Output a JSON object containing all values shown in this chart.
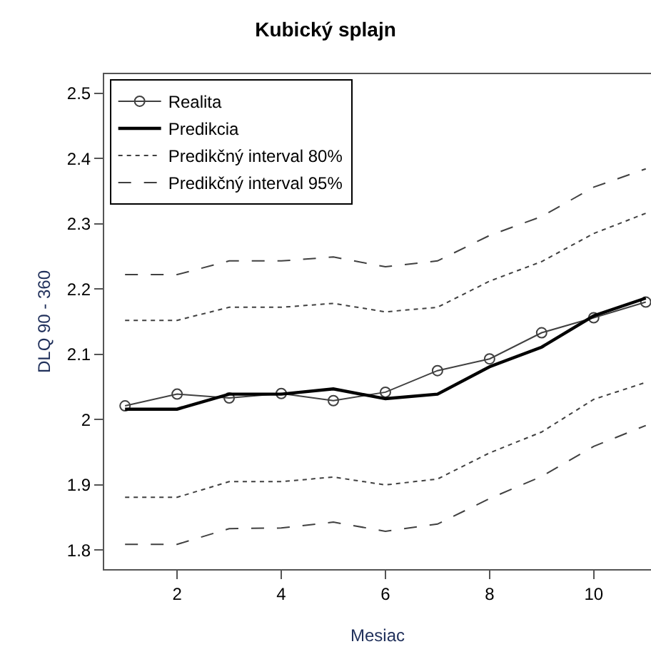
{
  "chart_data": {
    "type": "line",
    "title": "Kubický splajn",
    "xlabel": "Mesiac",
    "ylabel": "DLQ 90 - 360",
    "x": [
      1,
      2,
      3,
      4,
      5,
      6,
      7,
      8,
      9,
      10,
      11
    ],
    "series": [
      {
        "name": "Realita",
        "color": "#404040",
        "marker": "circle",
        "line_style": "solid",
        "values": [
          2.021,
          2.039,
          2.033,
          2.04,
          2.029,
          2.042,
          2.075,
          2.093,
          2.133,
          2.156,
          2.18
        ]
      },
      {
        "name": "Predikcia",
        "color": "#000000",
        "marker": "none",
        "line_style": "solid",
        "values": [
          2.016,
          2.016,
          2.039,
          2.039,
          2.047,
          2.032,
          2.039,
          2.081,
          2.111,
          2.159,
          2.186
        ]
      },
      {
        "name": "Predikčný interval 80%",
        "color": "#404040",
        "marker": "none",
        "line_style": "dotted",
        "values": [
          2.152,
          2.152,
          2.172,
          2.172,
          2.178,
          2.165,
          2.172,
          2.212,
          2.242,
          2.285,
          2.316
        ]
      },
      {
        "color": "#404040",
        "marker": "none",
        "line_style": "dotted",
        "values": [
          1.881,
          1.881,
          1.905,
          1.905,
          1.912,
          1.9,
          1.909,
          1.949,
          1.981,
          2.031,
          2.057
        ]
      },
      {
        "name": "Predikčný interval 95%",
        "color": "#404040",
        "marker": "none",
        "line_style": "dashed",
        "values": [
          2.222,
          2.222,
          2.243,
          2.243,
          2.249,
          2.234,
          2.243,
          2.282,
          2.311,
          2.356,
          2.384
        ]
      },
      {
        "color": "#404040",
        "marker": "none",
        "line_style": "dashed",
        "values": [
          1.809,
          1.809,
          1.833,
          1.834,
          1.843,
          1.829,
          1.84,
          1.879,
          1.913,
          1.959,
          1.991
        ]
      }
    ],
    "xlim": [
      0.6,
      11.1
    ],
    "xticks": [
      2,
      4,
      6,
      8,
      10
    ],
    "ylim": [
      1.771,
      2.529
    ],
    "yticks": [
      1.8,
      1.9,
      2.0,
      2.1,
      2.2,
      2.3,
      2.4,
      2.5
    ],
    "grid": false,
    "legend": "top left"
  }
}
